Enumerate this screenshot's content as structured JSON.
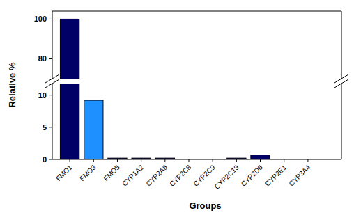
{
  "chart_data": {
    "type": "bar",
    "x_label": "Groups",
    "y_label": "Relative %",
    "categories": [
      "FMO1",
      "FMO3",
      "FMO5",
      "CYP1A2",
      "CYP2A6",
      "CYP2C8",
      "CYP2C9",
      "CYP2C19",
      "CYP2D6",
      "CYP2E1",
      "CYP3A4"
    ],
    "values": [
      100,
      9.2,
      0.2,
      0.2,
      0.2,
      0,
      0,
      0.2,
      0.7,
      0,
      0
    ],
    "colors": [
      "#000066",
      "#1e90ff",
      "#000066",
      "#000066",
      "#000066",
      "#000066",
      "#000066",
      "#000066",
      "#000066",
      "#000066",
      "#000066"
    ],
    "ylim": [
      0,
      104
    ],
    "ybreak": [
      11.8,
      70
    ],
    "yticks": [
      0,
      5,
      10,
      80,
      100
    ],
    "grid": false
  }
}
